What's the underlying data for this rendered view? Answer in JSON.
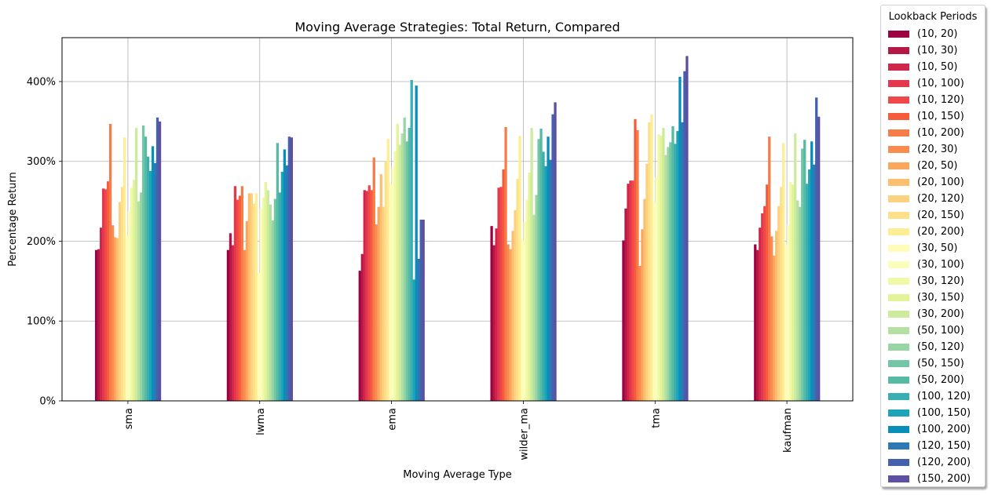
{
  "chart_data": {
    "type": "bar",
    "title": "Moving Average Strategies: Total Return, Compared",
    "xlabel": "Moving Average Type",
    "ylabel": "Percentage Return",
    "ylim": [
      0,
      4.55
    ],
    "yticks": [
      {
        "value": 0,
        "label": "0%"
      },
      {
        "value": 1,
        "label": "100%"
      },
      {
        "value": 2,
        "label": "200%"
      },
      {
        "value": 3,
        "label": "300%"
      },
      {
        "value": 4,
        "label": "400%"
      }
    ],
    "grid": true,
    "legend_title": "Lookback Periods",
    "legend_position": "outside right",
    "categories": [
      "sma",
      "lwma",
      "ema",
      "wilder_ma",
      "tma",
      "kaufman"
    ],
    "series": [
      {
        "name": "(10, 20)",
        "color": "#9e0142",
        "values": [
          1.89,
          1.89,
          1.63,
          2.19,
          2.01,
          1.96
        ]
      },
      {
        "name": "(10, 30)",
        "color": "#b61846",
        "values": [
          1.9,
          2.1,
          1.84,
          1.95,
          2.41,
          1.89
        ]
      },
      {
        "name": "(10, 50)",
        "color": "#d0264a",
        "values": [
          2.17,
          1.95,
          2.64,
          2.16,
          2.72,
          2.17
        ]
      },
      {
        "name": "(10, 100)",
        "color": "#e4364d",
        "values": [
          2.66,
          2.69,
          2.63,
          2.67,
          2.76,
          2.35
        ]
      },
      {
        "name": "(10, 120)",
        "color": "#f0484a",
        "values": [
          2.65,
          2.52,
          2.7,
          2.68,
          2.76,
          2.44
        ]
      },
      {
        "name": "(10, 150)",
        "color": "#f65c3a",
        "values": [
          2.75,
          2.57,
          2.64,
          2.9,
          3.53,
          2.71
        ]
      },
      {
        "name": "(10, 200)",
        "color": "#f67c4a",
        "values": [
          3.47,
          2.69,
          3.05,
          3.43,
          3.39,
          3.31
        ]
      },
      {
        "name": "(20, 30)",
        "color": "#fa8c4f",
        "values": [
          2.2,
          1.89,
          2.21,
          1.96,
          1.69,
          2.06
        ]
      },
      {
        "name": "(20, 50)",
        "color": "#fca55d",
        "values": [
          2.05,
          2.25,
          2.43,
          1.9,
          2.15,
          1.82
        ]
      },
      {
        "name": "(20, 100)",
        "color": "#fdbe6e",
        "values": [
          2.04,
          2.6,
          2.84,
          2.13,
          2.53,
          2.13
        ]
      },
      {
        "name": "(20, 120)",
        "color": "#fdd17f",
        "values": [
          2.49,
          2.6,
          2.43,
          2.39,
          2.97,
          2.44
        ]
      },
      {
        "name": "(20, 150)",
        "color": "#fee08b",
        "values": [
          2.68,
          2.47,
          3.0,
          2.78,
          3.49,
          2.68
        ]
      },
      {
        "name": "(20, 200)",
        "color": "#fded95",
        "values": [
          3.3,
          2.6,
          3.28,
          3.32,
          3.59,
          3.23
        ]
      },
      {
        "name": "(30, 50)",
        "color": "#fffbb8",
        "values": [
          2.07,
          1.6,
          2.72,
          2.01,
          2.48,
          1.95
        ]
      },
      {
        "name": "(30, 100)",
        "color": "#fbfdbb",
        "values": [
          2.38,
          2.4,
          2.92,
          2.24,
          2.8,
          2.2
        ]
      },
      {
        "name": "(30, 120)",
        "color": "#f0f9a8",
        "values": [
          2.67,
          2.55,
          3.13,
          2.52,
          3.34,
          2.74
        ]
      },
      {
        "name": "(30, 150)",
        "color": "#e2f399",
        "values": [
          2.77,
          2.74,
          3.47,
          2.86,
          3.32,
          2.71
        ]
      },
      {
        "name": "(30, 200)",
        "color": "#cdeb9d",
        "values": [
          3.42,
          2.64,
          3.21,
          3.42,
          3.42,
          3.35
        ]
      },
      {
        "name": "(50, 100)",
        "color": "#b4e1a2",
        "values": [
          2.5,
          2.46,
          3.35,
          2.33,
          3.08,
          2.51
        ]
      },
      {
        "name": "(50, 120)",
        "color": "#98d5a4",
        "values": [
          2.61,
          2.26,
          3.55,
          2.58,
          3.18,
          2.43
        ]
      },
      {
        "name": "(50, 150)",
        "color": "#74c7a5",
        "values": [
          3.45,
          2.53,
          3.25,
          3.28,
          3.24,
          3.16
        ]
      },
      {
        "name": "(50, 200)",
        "color": "#56bba4",
        "values": [
          3.31,
          3.23,
          3.42,
          3.41,
          3.44,
          3.27
        ]
      },
      {
        "name": "(100, 120)",
        "color": "#3aaeb0",
        "values": [
          3.06,
          2.61,
          4.02,
          3.12,
          3.22,
          2.72
        ]
      },
      {
        "name": "(100, 150)",
        "color": "#1ea4b8",
        "values": [
          2.88,
          2.87,
          1.52,
          2.94,
          3.38,
          2.9
        ]
      },
      {
        "name": "(100, 200)",
        "color": "#088fb9",
        "values": [
          3.19,
          3.15,
          3.95,
          3.31,
          4.06,
          3.25
        ]
      },
      {
        "name": "(120, 150)",
        "color": "#2c79b6",
        "values": [
          2.98,
          2.95,
          1.78,
          3.02,
          3.49,
          2.96
        ]
      },
      {
        "name": "(120, 200)",
        "color": "#4461ac",
        "values": [
          3.55,
          3.31,
          2.27,
          3.59,
          4.13,
          3.8
        ]
      },
      {
        "name": "(150, 200)",
        "color": "#5e4fa2",
        "values": [
          3.5,
          3.3,
          2.27,
          3.74,
          4.32,
          3.56
        ]
      }
    ]
  }
}
